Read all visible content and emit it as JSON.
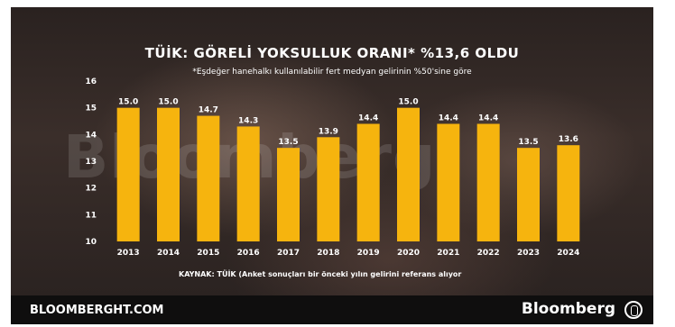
{
  "chart_data": {
    "type": "bar",
    "title": "TÜİK: GÖRELİ YOKSULLUK ORANI* %13,6 OLDU",
    "subtitle": "*Eşdeğer hanehalkı kullanılabilir fert medyan gelirinin %50'sine göre",
    "categories": [
      "2013",
      "2014",
      "2015",
      "2016",
      "2017",
      "2018",
      "2019",
      "2020",
      "2021",
      "2022",
      "2023",
      "2024"
    ],
    "values": [
      15.0,
      15.0,
      14.7,
      14.3,
      13.5,
      13.9,
      14.4,
      15.0,
      14.4,
      14.4,
      13.5,
      13.6
    ],
    "value_labels": [
      "15.0",
      "15.0",
      "14.7",
      "14.3",
      "13.5",
      "13.9",
      "14.4",
      "15.0",
      "14.4",
      "14.4",
      "13.5",
      "13.6"
    ],
    "y_ticks": [
      "10",
      "11",
      "12",
      "13",
      "14",
      "15",
      "16"
    ],
    "ylim": [
      10,
      16
    ],
    "xlabel": "",
    "ylabel": "",
    "grid": false,
    "bar_color": "#f6b40e",
    "source": "KAYNAK: TÜİK (Anket sonuçları bir önceki yılın gelirini referans alıyor"
  },
  "footer": {
    "site": "BLOOMBERGHT.COM",
    "brand": "Bloomberg"
  },
  "watermark": "Bloomberg"
}
